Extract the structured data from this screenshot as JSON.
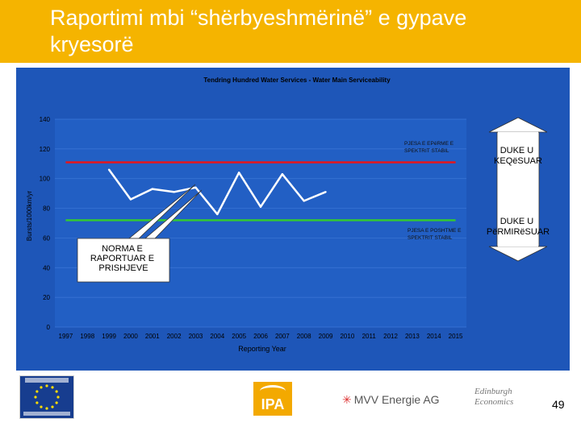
{
  "slide": {
    "title": "Raportimi mbi “shërbyeshmërinë” e gypave kryesorë",
    "page_number": "49",
    "colors": {
      "header": "#f5b400",
      "chart_background": "#1e56b8",
      "plot_area": "#225fc4"
    }
  },
  "chart_data": {
    "type": "line",
    "title": "Tendring Hundred Water Services - Water Main Serviceability",
    "xlabel": "Reporting Year",
    "ylabel": "Bursts/1000km/yr",
    "ylim": [
      0,
      140
    ],
    "yticks": [
      0,
      20,
      40,
      60,
      80,
      100,
      120,
      140
    ],
    "categories": [
      "1997",
      "1998",
      "1999",
      "2000",
      "2001",
      "2002",
      "2003",
      "2004",
      "2005",
      "2006",
      "2007",
      "2008",
      "2009",
      "2010",
      "2011",
      "2012",
      "2013",
      "2014",
      "2015"
    ],
    "grid": true,
    "series": [
      {
        "values": [
          null,
          null,
          106,
          86,
          93,
          91,
          94,
          76,
          104,
          81,
          103,
          85,
          91,
          null,
          null,
          null,
          null,
          null,
          null
        ],
        "color": "#ffffff"
      }
    ],
    "reference_lines": [
      {
        "value": 111,
        "color": "#e8151b",
        "x_start": "1997",
        "x_end": "2015"
      },
      {
        "value": 72,
        "color": "#33c833",
        "x_start": "1997",
        "x_end": "2015"
      }
    ],
    "annotations": {
      "upper_band": "PJESA E EPëRME E SPEKTRIT STABIL",
      "lower_band": "PJESA E POSHTME E SPEKTRIT STABIL",
      "callout": "NORMA E RAPORTUAR E PRISHJEVE",
      "arrow_up": "DUKE U KEQëSUAR",
      "arrow_down": "DUKE U PëRMIRëSUAR"
    }
  },
  "footer": {
    "logos": [
      "european-union-logo",
      "ipa-logo",
      "mvv-energie-logo",
      "edinburgh-economics-logo"
    ],
    "ipa_text": "IPA",
    "mvv_text": "MVV Energie AG",
    "ee_text": "Edinburgh Economics"
  }
}
